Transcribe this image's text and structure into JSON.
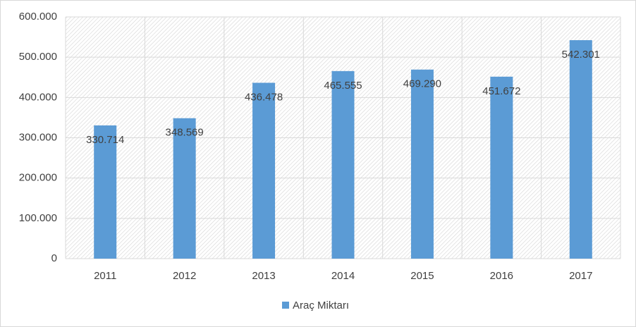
{
  "chart_data": {
    "type": "bar",
    "categories": [
      "2011",
      "2012",
      "2013",
      "2014",
      "2015",
      "2016",
      "2017"
    ],
    "series": [
      {
        "name": "Araç Miktarı",
        "color": "#5b9bd5",
        "values": [
          330714,
          348569,
          436478,
          465555,
          469290,
          451672,
          542301
        ],
        "value_labels": [
          "330.714",
          "348.569",
          "436.478",
          "465.555",
          "469.290",
          "451.672",
          "542.301"
        ]
      }
    ],
    "ylim": [
      0,
      600000
    ],
    "yticks": [
      0,
      {
        "value": 100000,
        "label": "100.000"
      },
      {
        "value": 200000,
        "label": "200.000"
      },
      {
        "value": 300000,
        "label": "300.000"
      },
      {
        "value": 400000,
        "label": "400.000"
      },
      {
        "value": 500000,
        "label": "500.000"
      },
      {
        "value": 600000,
        "label": "600.000"
      }
    ],
    "grid": true,
    "legend": "bottom"
  }
}
